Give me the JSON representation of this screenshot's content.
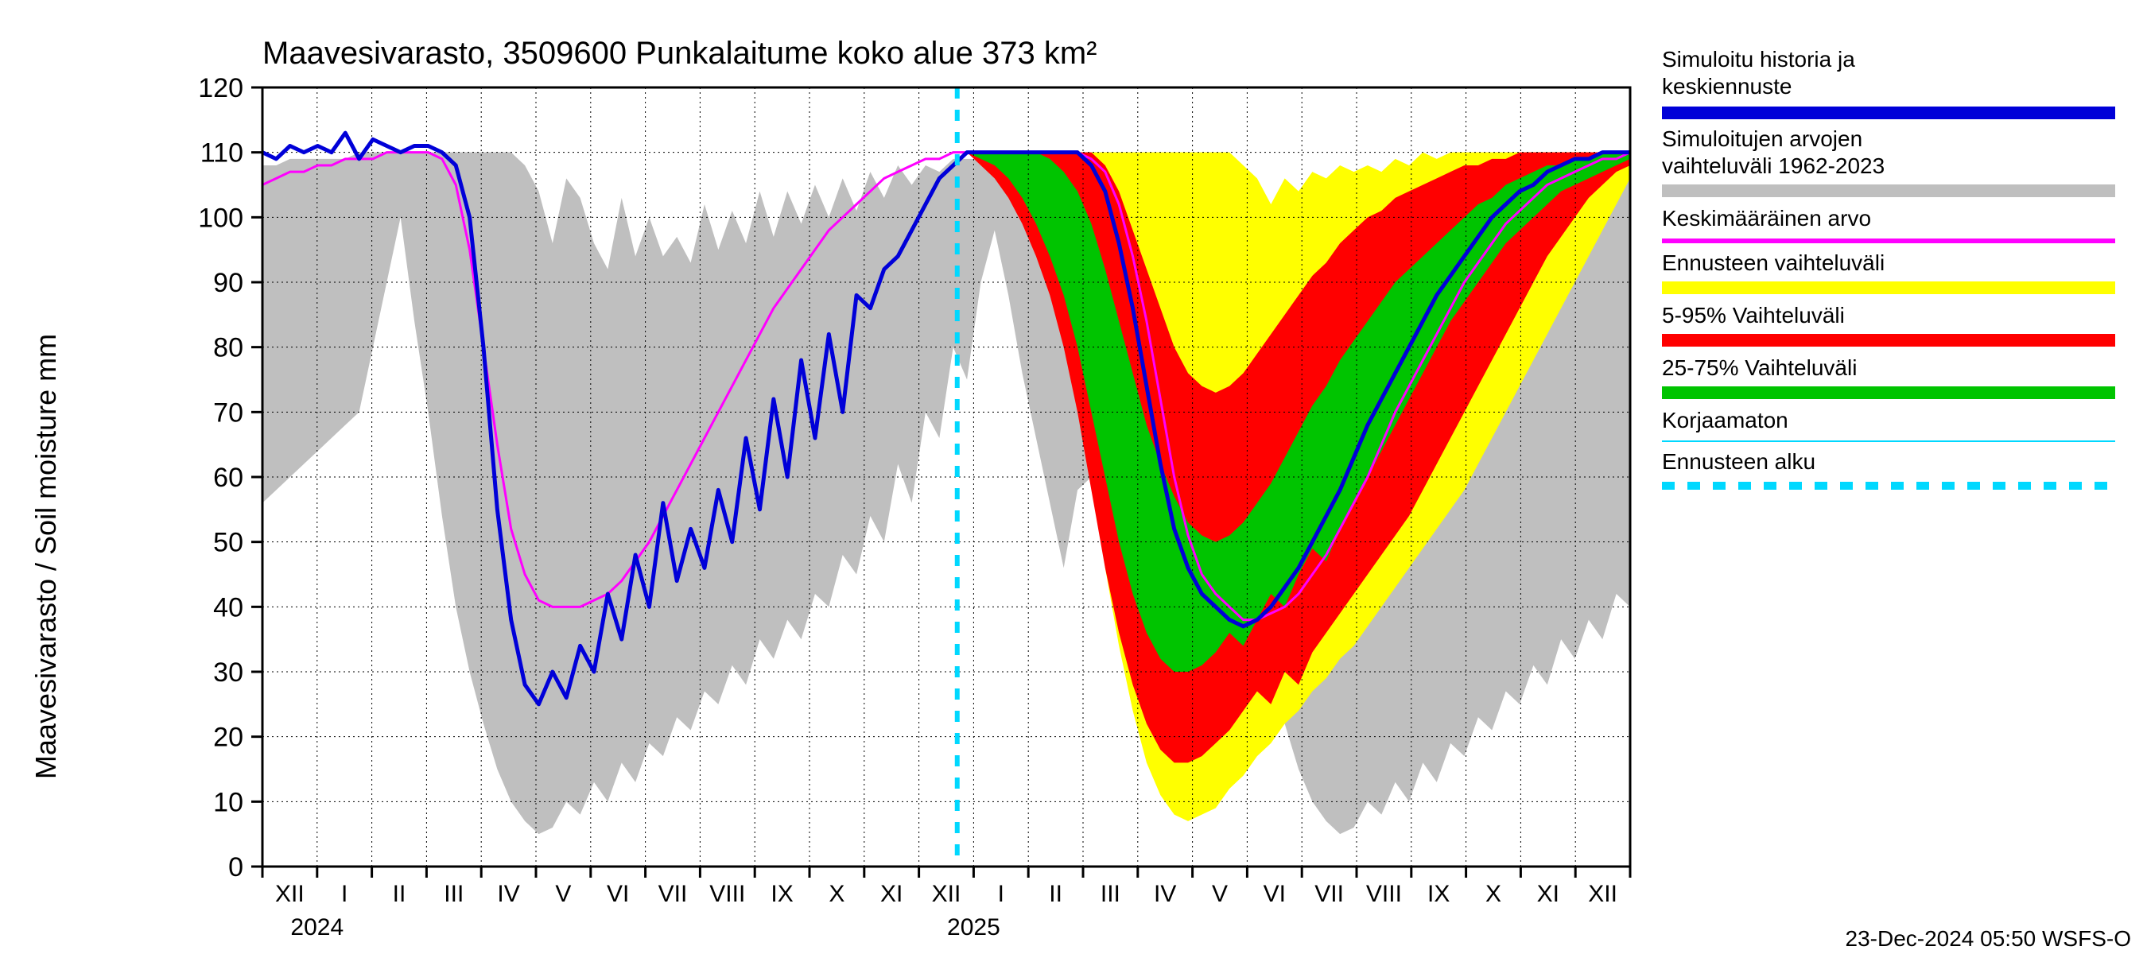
{
  "title": "Maavesivarasto, 3509600 Punkalaitume koko alue 373 km²",
  "y_axis_label": "Maavesivarasto / Soil moisture   mm",
  "footer": "23-Dec-2024 05:50 WSFS-O",
  "legend": {
    "sim_history": [
      "Simuloitu historia ja",
      "keskiennuste"
    ],
    "sim_range": [
      "Simuloitujen arvojen",
      "vaihteluväli 1962-2023"
    ],
    "mean": "Keskimääräinen arvo",
    "fc_range": "Ennusteen vaihteluväli",
    "p5_95": "5-95% Vaihteluväli",
    "p25_75": "25-75% Vaihteluväli",
    "uncorr": "Korjaamaton",
    "fc_start": "Ennusteen alku"
  },
  "chart": {
    "background_color": "#ffffff",
    "grid_color": "#000000",
    "grid_dash": "2 4",
    "axis_color": "#000000",
    "font_family": "Arial, sans-serif",
    "title_fontsize": 40,
    "ylim": [
      0,
      120
    ],
    "yticks": [
      0,
      10,
      20,
      30,
      40,
      50,
      60,
      70,
      80,
      90,
      100,
      110,
      120
    ],
    "months": [
      "XII",
      "I",
      "II",
      "III",
      "IV",
      "V",
      "VI",
      "VII",
      "VIII",
      "IX",
      "X",
      "XI",
      "XII",
      "I",
      "II",
      "III",
      "IV",
      "V",
      "VI",
      "VII",
      "VIII",
      "IX",
      "X",
      "XI",
      "XII"
    ],
    "year_labels": [
      {
        "text": "2024",
        "after_month_index": 1
      },
      {
        "text": "2025",
        "after_month_index": 13
      }
    ],
    "forecast_start_month_index": 12.7,
    "bands": {
      "gray": {
        "color": "#bfbfbf",
        "upper": [
          108,
          108,
          109,
          109,
          109,
          109,
          109,
          110,
          110,
          110,
          110,
          110,
          110,
          110,
          110,
          110,
          110,
          110,
          110,
          108,
          104,
          96,
          106,
          103,
          96,
          92,
          103,
          94,
          100,
          94,
          97,
          93,
          102,
          95,
          101,
          96,
          104,
          97,
          104,
          99,
          105,
          100,
          106,
          101,
          107,
          103,
          108,
          105,
          108,
          107,
          109,
          109,
          109,
          109,
          110,
          110,
          110,
          110,
          110,
          110,
          110,
          110,
          110,
          110,
          110,
          110,
          110,
          108,
          104,
          96,
          106,
          103,
          96,
          92,
          103,
          94,
          100,
          94,
          97,
          93,
          102,
          95,
          101,
          96,
          104,
          97,
          104,
          99,
          105,
          100,
          106,
          101,
          107,
          103,
          108,
          105,
          108,
          107,
          109,
          109
        ],
        "lower": [
          56,
          58,
          60,
          62,
          64,
          66,
          68,
          70,
          80,
          90,
          100,
          84,
          70,
          54,
          40,
          30,
          22,
          15,
          10,
          7,
          5,
          6,
          10,
          8,
          13,
          10,
          16,
          13,
          19,
          17,
          23,
          21,
          27,
          25,
          31,
          28,
          35,
          32,
          38,
          35,
          42,
          40,
          48,
          45,
          54,
          50,
          62,
          56,
          70,
          66,
          80,
          75,
          90,
          98,
          88,
          76,
          66,
          56,
          46,
          58,
          60,
          62,
          64,
          66,
          68,
          70,
          80,
          90,
          100,
          84,
          70,
          54,
          40,
          30,
          22,
          15,
          10,
          7,
          5,
          6,
          10,
          8,
          13,
          10,
          16,
          13,
          19,
          17,
          23,
          21,
          27,
          25,
          31,
          28,
          35,
          32,
          38,
          35,
          42,
          40
        ]
      },
      "yellow": {
        "color": "#ffff00",
        "upper": [
          null,
          null,
          null,
          null,
          null,
          null,
          null,
          null,
          null,
          null,
          null,
          null,
          null,
          null,
          null,
          null,
          null,
          null,
          null,
          null,
          null,
          null,
          null,
          null,
          null,
          null,
          null,
          null,
          null,
          null,
          null,
          null,
          null,
          null,
          null,
          null,
          null,
          null,
          null,
          null,
          null,
          null,
          null,
          null,
          null,
          null,
          null,
          null,
          null,
          null,
          null,
          110,
          110,
          110,
          110,
          110,
          110,
          110,
          110,
          110,
          110,
          110,
          110,
          110,
          110,
          110,
          110,
          110,
          110,
          110,
          110,
          108,
          106,
          102,
          106,
          104,
          107,
          106,
          108,
          107,
          108,
          107,
          109,
          108,
          110,
          109,
          110,
          110,
          110,
          110,
          110,
          110,
          110,
          110,
          110,
          110,
          110,
          110,
          110,
          110
        ],
        "lower": [
          null,
          null,
          null,
          null,
          null,
          null,
          null,
          null,
          null,
          null,
          null,
          null,
          null,
          null,
          null,
          null,
          null,
          null,
          null,
          null,
          null,
          null,
          null,
          null,
          null,
          null,
          null,
          null,
          null,
          null,
          null,
          null,
          null,
          null,
          null,
          null,
          null,
          null,
          null,
          null,
          null,
          null,
          null,
          null,
          null,
          null,
          null,
          null,
          null,
          null,
          null,
          110,
          109,
          108,
          106,
          103,
          98,
          92,
          84,
          74,
          60,
          46,
          34,
          24,
          16,
          11,
          8,
          7,
          8,
          9,
          12,
          14,
          17,
          19,
          22,
          24,
          27,
          29,
          32,
          34,
          37,
          40,
          43,
          46,
          49,
          52,
          55,
          58,
          62,
          66,
          70,
          74,
          78,
          82,
          86,
          90,
          94,
          98,
          102,
          106
        ]
      },
      "red": {
        "color": "#ff0000",
        "upper": [
          null,
          null,
          null,
          null,
          null,
          null,
          null,
          null,
          null,
          null,
          null,
          null,
          null,
          null,
          null,
          null,
          null,
          null,
          null,
          null,
          null,
          null,
          null,
          null,
          null,
          null,
          null,
          null,
          null,
          null,
          null,
          null,
          null,
          null,
          null,
          null,
          null,
          null,
          null,
          null,
          null,
          null,
          null,
          null,
          null,
          null,
          null,
          null,
          null,
          null,
          null,
          110,
          110,
          110,
          110,
          110,
          110,
          110,
          110,
          110,
          110,
          108,
          104,
          98,
          92,
          86,
          80,
          76,
          74,
          73,
          74,
          76,
          79,
          82,
          85,
          88,
          91,
          93,
          96,
          98,
          100,
          101,
          103,
          104,
          105,
          106,
          107,
          108,
          108,
          109,
          109,
          110,
          110,
          110,
          110,
          110,
          110,
          110,
          110,
          110
        ],
        "lower": [
          null,
          null,
          null,
          null,
          null,
          null,
          null,
          null,
          null,
          null,
          null,
          null,
          null,
          null,
          null,
          null,
          null,
          null,
          null,
          null,
          null,
          null,
          null,
          null,
          null,
          null,
          null,
          null,
          null,
          null,
          null,
          null,
          null,
          null,
          null,
          null,
          null,
          null,
          null,
          null,
          null,
          null,
          null,
          null,
          null,
          null,
          null,
          null,
          null,
          null,
          null,
          110,
          108,
          106,
          103,
          99,
          94,
          88,
          80,
          70,
          58,
          46,
          36,
          28,
          22,
          18,
          16,
          16,
          17,
          19,
          21,
          24,
          27,
          25,
          30,
          28,
          33,
          36,
          39,
          42,
          45,
          48,
          51,
          54,
          58,
          62,
          66,
          70,
          74,
          78,
          82,
          86,
          90,
          94,
          97,
          100,
          103,
          105,
          107,
          108
        ]
      },
      "green": {
        "color": "#00c400",
        "upper": [
          null,
          null,
          null,
          null,
          null,
          null,
          null,
          null,
          null,
          null,
          null,
          null,
          null,
          null,
          null,
          null,
          null,
          null,
          null,
          null,
          null,
          null,
          null,
          null,
          null,
          null,
          null,
          null,
          null,
          null,
          null,
          null,
          null,
          null,
          null,
          null,
          null,
          null,
          null,
          null,
          null,
          null,
          null,
          null,
          null,
          null,
          null,
          null,
          null,
          null,
          null,
          110,
          110,
          110,
          110,
          110,
          110,
          109,
          107,
          104,
          99,
          92,
          84,
          76,
          68,
          62,
          57,
          53,
          51,
          50,
          51,
          53,
          56,
          59,
          63,
          67,
          71,
          74,
          78,
          81,
          84,
          87,
          90,
          92,
          94,
          96,
          98,
          100,
          102,
          103,
          105,
          106,
          107,
          108,
          108,
          109,
          109,
          110,
          110,
          110
        ],
        "lower": [
          null,
          null,
          null,
          null,
          null,
          null,
          null,
          null,
          null,
          null,
          null,
          null,
          null,
          null,
          null,
          null,
          null,
          null,
          null,
          null,
          null,
          null,
          null,
          null,
          null,
          null,
          null,
          null,
          null,
          null,
          null,
          null,
          null,
          null,
          null,
          null,
          null,
          null,
          null,
          null,
          null,
          null,
          null,
          null,
          null,
          null,
          null,
          null,
          null,
          null,
          null,
          110,
          109,
          108,
          106,
          103,
          99,
          94,
          88,
          80,
          70,
          60,
          50,
          42,
          36,
          32,
          30,
          30,
          31,
          33,
          36,
          34,
          38,
          42,
          40,
          45,
          49,
          47,
          52,
          56,
          60,
          64,
          68,
          72,
          76,
          80,
          84,
          87,
          90,
          93,
          96,
          98,
          100,
          102,
          104,
          105,
          106,
          107,
          108,
          109
        ]
      }
    },
    "lines": {
      "mean": {
        "color": "#ff00ff",
        "width": 3,
        "values": [
          105,
          106,
          107,
          107,
          108,
          108,
          109,
          109,
          109,
          110,
          110,
          110,
          110,
          109,
          105,
          95,
          80,
          65,
          52,
          45,
          41,
          40,
          40,
          40,
          41,
          42,
          44,
          47,
          50,
          54,
          58,
          62,
          66,
          70,
          74,
          78,
          82,
          86,
          89,
          92,
          95,
          98,
          100,
          102,
          104,
          106,
          107,
          108,
          109,
          109,
          110,
          110,
          110,
          110,
          110,
          110,
          110,
          110,
          110,
          110,
          109,
          107,
          102,
          94,
          84,
          72,
          60,
          51,
          45,
          42,
          40,
          38,
          38,
          39,
          40,
          42,
          45,
          48,
          52,
          56,
          60,
          65,
          70,
          74,
          78,
          82,
          86,
          90,
          93,
          96,
          99,
          101,
          103,
          105,
          106,
          107,
          108,
          109,
          109,
          110
        ]
      },
      "blue": {
        "color": "#0000d8",
        "width": 5,
        "values": [
          110,
          109,
          111,
          110,
          111,
          110,
          113,
          109,
          112,
          111,
          110,
          111,
          111,
          110,
          108,
          100,
          80,
          55,
          38,
          28,
          25,
          30,
          26,
          34,
          30,
          42,
          35,
          48,
          40,
          56,
          44,
          52,
          46,
          58,
          50,
          66,
          55,
          72,
          60,
          78,
          66,
          82,
          70,
          88,
          86,
          92,
          94,
          98,
          102,
          106,
          108,
          110,
          110,
          110,
          110,
          110,
          110,
          110,
          110,
          110,
          108,
          104,
          96,
          86,
          74,
          62,
          52,
          46,
          42,
          40,
          38,
          37,
          38,
          40,
          43,
          46,
          50,
          54,
          58,
          63,
          68,
          72,
          76,
          80,
          84,
          88,
          91,
          94,
          97,
          100,
          102,
          104,
          105,
          107,
          108,
          109,
          109,
          110,
          110,
          110
        ]
      }
    },
    "forecast_line": {
      "color": "#00d8ff",
      "width": 6,
      "dash": "14 14"
    }
  }
}
